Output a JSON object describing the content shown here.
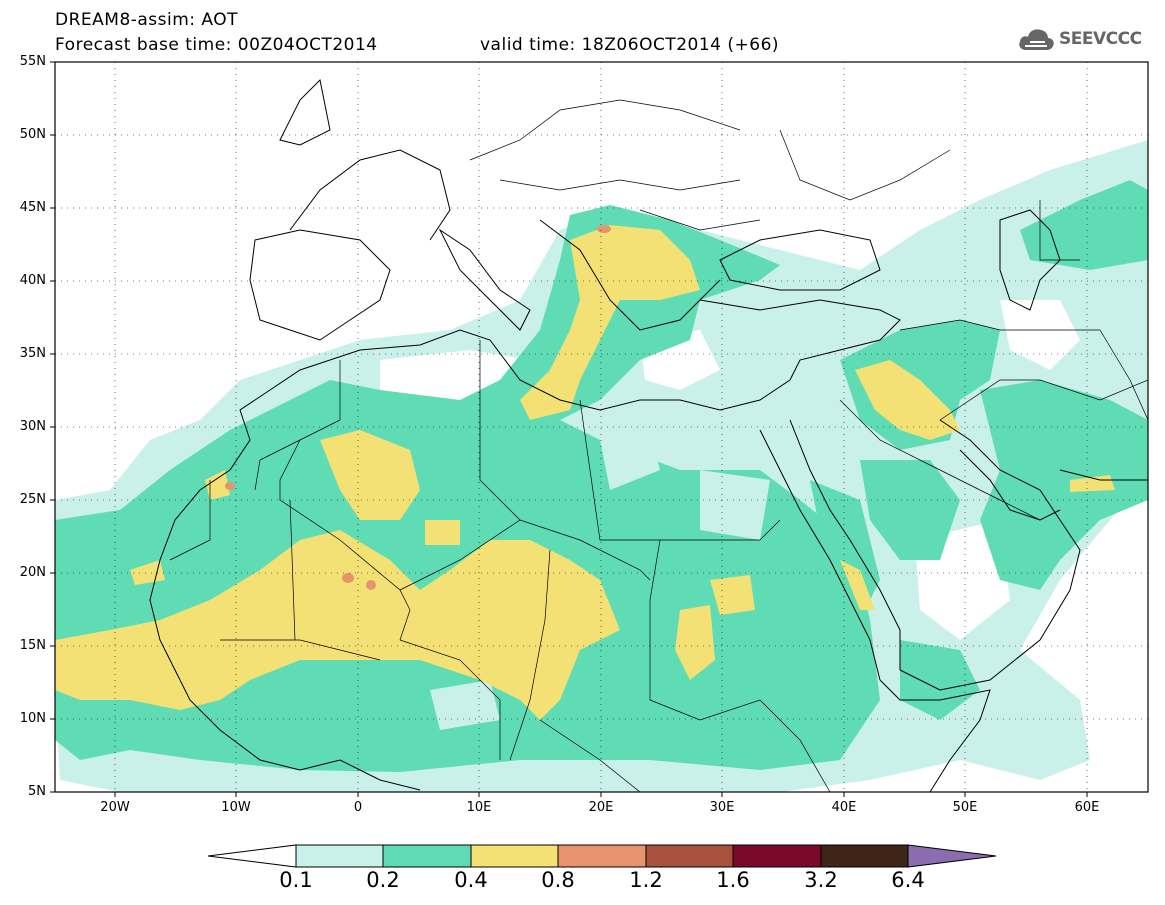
{
  "header": {
    "title_line1": "DREAM8-assim: AOT",
    "title_line2": "Forecast base time: 00Z04OCT2014",
    "valid_time": "valid time: 18Z06OCT2014 (+66)",
    "logo_text": "SEEVCCC"
  },
  "map": {
    "lon_range": [
      -25,
      65
    ],
    "lat_range": [
      5,
      55
    ],
    "lat_labels": [
      "55N",
      "50N",
      "45N",
      "40N",
      "35N",
      "30N",
      "25N",
      "20N",
      "15N",
      "10N",
      "5N"
    ],
    "lon_labels": [
      "20W",
      "10W",
      "0",
      "10E",
      "20E",
      "30E",
      "40E",
      "50E",
      "60E"
    ]
  },
  "colorbar": {
    "labels": [
      "0.1",
      "0.2",
      "0.4",
      "0.8",
      "1.2",
      "1.6",
      "3.2",
      "6.4"
    ],
    "colors": [
      "#ffffff",
      "#c9f0e9",
      "#5fdcb4",
      "#f4e176",
      "#e8936e",
      "#a9513f",
      "#7b0a2a",
      "#3e2515",
      "#8a6cb0"
    ]
  }
}
